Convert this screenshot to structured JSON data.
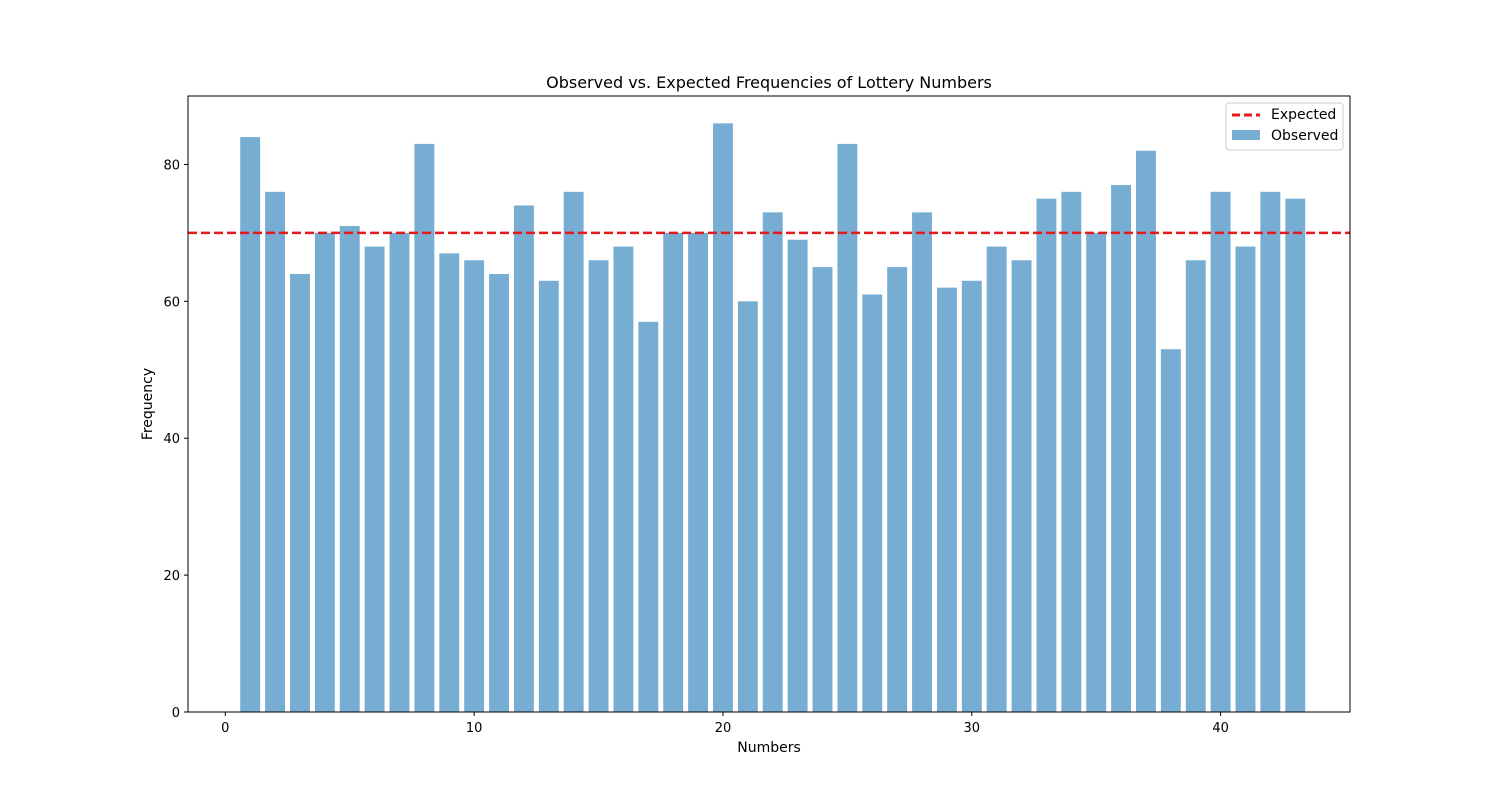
{
  "chart_data": {
    "type": "bar",
    "title": "Observed vs. Expected Frequencies of Lottery Numbers",
    "xlabel": "Numbers",
    "ylabel": "Frequency",
    "xlim": [
      -1.5,
      45.2
    ],
    "ylim": [
      0,
      90
    ],
    "xticks": [
      0,
      10,
      20,
      30,
      40
    ],
    "yticks": [
      0,
      20,
      40,
      60,
      80
    ],
    "grid": false,
    "legend_position": "top-right",
    "x": [
      1,
      2,
      3,
      4,
      5,
      6,
      7,
      8,
      9,
      10,
      11,
      12,
      13,
      14,
      15,
      16,
      17,
      18,
      19,
      20,
      21,
      22,
      23,
      24,
      25,
      26,
      27,
      28,
      29,
      30,
      31,
      32,
      33,
      34,
      35,
      36,
      37,
      38,
      39,
      40,
      41,
      42,
      43
    ],
    "series": [
      {
        "name": "Observed",
        "kind": "bar",
        "color": "#77acd3",
        "values": [
          84,
          76,
          64,
          70,
          71,
          68,
          70,
          83,
          67,
          66,
          64,
          74,
          63,
          76,
          66,
          68,
          57,
          70,
          70,
          86,
          60,
          73,
          69,
          65,
          83,
          61,
          65,
          73,
          62,
          63,
          68,
          66,
          75,
          76,
          70,
          77,
          82,
          53,
          66,
          76,
          68,
          76,
          75
        ]
      },
      {
        "name": "Expected",
        "kind": "hline",
        "color": "#e41a1c",
        "value": 70
      }
    ]
  }
}
